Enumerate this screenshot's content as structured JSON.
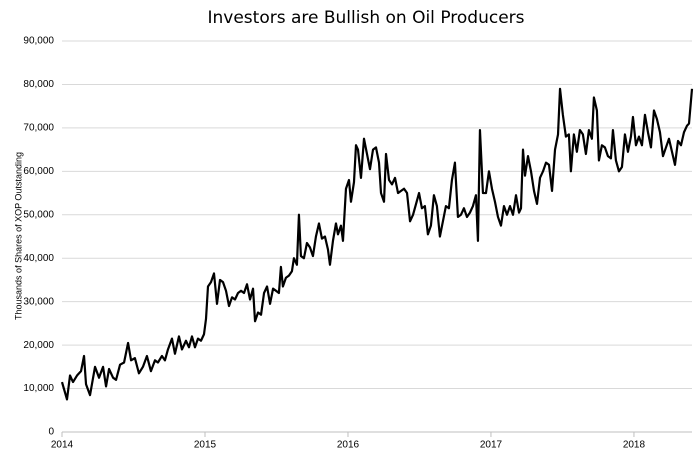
{
  "chart_data": {
    "type": "line",
    "title": "Investors are Bullish on Oil Producers",
    "y_label": "Thousands of Shares of XOP Outstanding",
    "xlim": [
      2014,
      2018.406
    ],
    "xticks": [
      2014,
      2015,
      2016,
      2017,
      2018
    ],
    "ylim": [
      0,
      90000
    ],
    "yticks": [
      0,
      {
        "value": 10000,
        "label": "10,000"
      },
      {
        "value": 20000,
        "label": "20,000"
      },
      {
        "value": 30000,
        "label": "30,000"
      },
      {
        "value": 40000,
        "label": "40,000"
      },
      {
        "value": 50000,
        "label": "50,000"
      },
      {
        "value": 60000,
        "label": "60,000"
      },
      {
        "value": 70000,
        "label": "70,000"
      },
      {
        "value": 80000,
        "label": "80,000"
      },
      {
        "value": 90000,
        "label": "90,000"
      }
    ],
    "grid": true,
    "x": [
      2014.0,
      2014.035,
      2014.056,
      2014.077,
      2014.105,
      2014.133,
      2014.154,
      2014.168,
      2014.196,
      2014.231,
      2014.259,
      2014.287,
      2014.308,
      2014.329,
      2014.357,
      2014.378,
      2014.406,
      2014.434,
      2014.462,
      2014.483,
      2014.51,
      2014.538,
      2014.566,
      2014.594,
      2014.622,
      2014.65,
      2014.671,
      2014.699,
      2014.72,
      2014.741,
      2014.769,
      2014.79,
      2014.818,
      2014.839,
      2014.867,
      2014.888,
      2014.909,
      2014.93,
      2014.951,
      2014.972,
      2014.993,
      2015.007,
      2015.021,
      2015.042,
      2015.063,
      2015.084,
      2015.105,
      2015.126,
      2015.147,
      2015.168,
      2015.189,
      2015.21,
      2015.231,
      2015.252,
      2015.273,
      2015.294,
      2015.315,
      2015.336,
      2015.35,
      2015.371,
      2015.392,
      2015.413,
      2015.434,
      2015.455,
      2015.476,
      2015.497,
      2015.517,
      2015.531,
      2015.545,
      2015.566,
      2015.587,
      2015.608,
      2015.622,
      2015.643,
      2015.657,
      2015.671,
      2015.692,
      2015.713,
      2015.734,
      2015.755,
      2015.776,
      2015.797,
      2015.818,
      2015.839,
      2015.86,
      2015.874,
      2015.895,
      2015.916,
      2015.93,
      2015.951,
      2015.965,
      2015.986,
      2016.007,
      2016.021,
      2016.042,
      2016.056,
      2016.07,
      2016.091,
      2016.112,
      2016.133,
      2016.154,
      2016.175,
      2016.196,
      2016.217,
      2016.231,
      2016.252,
      2016.266,
      2016.287,
      2016.308,
      2016.329,
      2016.35,
      2016.371,
      2016.392,
      2016.413,
      2016.434,
      2016.455,
      2016.476,
      2016.497,
      2016.517,
      2016.538,
      2016.559,
      2016.58,
      2016.601,
      2016.622,
      2016.643,
      2016.664,
      2016.685,
      2016.706,
      2016.727,
      2016.748,
      2016.769,
      2016.79,
      2016.811,
      2016.832,
      2016.853,
      2016.874,
      2016.895,
      2016.909,
      2016.923,
      2016.944,
      2016.965,
      2016.986,
      2017.007,
      2017.028,
      2017.049,
      2017.07,
      2017.091,
      2017.112,
      2017.133,
      2017.154,
      2017.175,
      2017.196,
      2017.21,
      2017.224,
      2017.238,
      2017.259,
      2017.28,
      2017.301,
      2017.322,
      2017.343,
      2017.364,
      2017.385,
      2017.406,
      2017.427,
      2017.448,
      2017.469,
      2017.483,
      2017.503,
      2017.524,
      2017.545,
      2017.559,
      2017.58,
      2017.601,
      2017.622,
      2017.643,
      2017.664,
      2017.685,
      2017.706,
      2017.72,
      2017.741,
      2017.755,
      2017.776,
      2017.797,
      2017.818,
      2017.839,
      2017.853,
      2017.874,
      2017.895,
      2017.916,
      2017.937,
      2017.958,
      2017.979,
      2017.993,
      2018.014,
      2018.035,
      2018.056,
      2018.077,
      2018.098,
      2018.119,
      2018.14,
      2018.161,
      2018.182,
      2018.203,
      2018.224,
      2018.245,
      2018.266,
      2018.287,
      2018.308,
      2018.329,
      2018.35,
      2018.371,
      2018.385,
      2018.406
    ],
    "series": [
      {
        "color": "#000000",
        "values": [
          11500,
          7500,
          13000,
          11500,
          13000,
          14000,
          17500,
          11000,
          8500,
          15000,
          12500,
          15000,
          10500,
          14500,
          12500,
          12000,
          15500,
          16000,
          20500,
          16500,
          17000,
          13500,
          15000,
          17500,
          14000,
          16500,
          16000,
          17500,
          16500,
          19000,
          21500,
          18000,
          22000,
          19000,
          21000,
          19500,
          22000,
          19500,
          21500,
          21000,
          22500,
          26000,
          33500,
          34500,
          36500,
          29500,
          35000,
          34500,
          32500,
          29000,
          31000,
          30500,
          32000,
          32500,
          32000,
          34000,
          30500,
          33000,
          25500,
          27500,
          27000,
          32000,
          33500,
          29500,
          33000,
          32500,
          32000,
          38000,
          33500,
          35500,
          36000,
          37000,
          40000,
          38500,
          50000,
          40500,
          40000,
          43500,
          42500,
          40500,
          45000,
          48000,
          44500,
          45000,
          42000,
          38500,
          44000,
          48000,
          45500,
          47500,
          44000,
          56000,
          58000,
          53000,
          57500,
          66000,
          65000,
          58500,
          67500,
          64000,
          60500,
          65000,
          65500,
          62000,
          55000,
          53000,
          64000,
          58000,
          57000,
          58500,
          55000,
          55500,
          56000,
          55000,
          48500,
          50000,
          52500,
          55000,
          51500,
          52000,
          45500,
          47500,
          54500,
          52000,
          45000,
          48500,
          52000,
          51500,
          58000,
          62000,
          49500,
          50000,
          51500,
          49500,
          50500,
          52000,
          54500,
          44000,
          69500,
          55000,
          55000,
          60000,
          56000,
          53000,
          49500,
          47500,
          52000,
          50000,
          52000,
          50000,
          54500,
          50500,
          51500,
          65000,
          59000,
          63500,
          60000,
          55500,
          52500,
          58500,
          60000,
          62000,
          61500,
          55500,
          65000,
          68500,
          79000,
          73000,
          68000,
          68500,
          60000,
          68500,
          64500,
          69500,
          68500,
          64000,
          69500,
          67500,
          77000,
          74000,
          62500,
          66000,
          65500,
          63500,
          63000,
          69500,
          62500,
          60000,
          61000,
          68500,
          64500,
          68000,
          72500,
          66000,
          68000,
          66000,
          73000,
          69000,
          65500,
          74000,
          72000,
          69000,
          63500,
          65500,
          67500,
          64500,
          61500,
          67000,
          66000,
          69000,
          70500,
          71000,
          79000
        ]
      }
    ]
  }
}
